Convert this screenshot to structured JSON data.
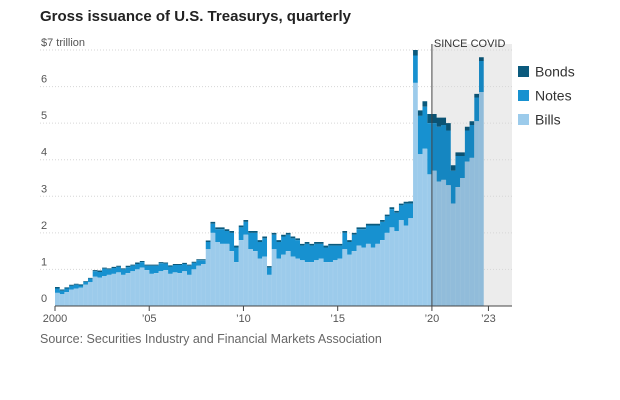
{
  "chart_data": {
    "type": "area",
    "title": "Gross issuance of U.S. Treasurys, quarterly",
    "source": "Source: Securities Industry and Financial Markets Association",
    "y_unit_label": "$7 trillion",
    "yticks": [
      "0",
      "1",
      "2",
      "3",
      "4",
      "5",
      "6"
    ],
    "ylim": [
      0,
      7
    ],
    "xlim": [
      2000,
      2024.25
    ],
    "xticks": [
      {
        "label": "2000",
        "x": 2000
      },
      {
        "label": "’05",
        "x": 2005
      },
      {
        "label": "’10",
        "x": 2010
      },
      {
        "label": "’15",
        "x": 2015
      },
      {
        "label": "’20",
        "x": 2020
      },
      {
        "label": "’23",
        "x": 2023
      }
    ],
    "highlight": {
      "label": "SINCE COVID",
      "start": 2020,
      "end": 2024.25
    },
    "stack_order": [
      "Bills",
      "Notes",
      "Bonds"
    ],
    "legend": [
      {
        "name": "Bonds",
        "color": "#0b5a7d"
      },
      {
        "name": "Notes",
        "color": "#1791d0"
      },
      {
        "name": "Bills",
        "color": "#9ccbeb"
      }
    ],
    "series": [
      {
        "name": "Bills",
        "color": "#9ccbeb",
        "values": [
          0.36,
          0.32,
          0.38,
          0.45,
          0.48,
          0.5,
          0.58,
          0.65,
          0.8,
          0.78,
          0.82,
          0.85,
          0.88,
          0.92,
          0.85,
          0.9,
          0.95,
          1.0,
          1.05,
          0.98,
          0.88,
          0.9,
          0.95,
          0.98,
          0.88,
          0.92,
          0.9,
          0.95,
          0.85,
          1.0,
          1.1,
          1.15,
          1.55,
          2.0,
          1.75,
          1.7,
          1.7,
          1.5,
          1.2,
          1.8,
          1.95,
          1.55,
          1.5,
          1.3,
          1.35,
          0.85,
          1.55,
          1.3,
          1.4,
          1.5,
          1.35,
          1.3,
          1.25,
          1.2,
          1.2,
          1.25,
          1.3,
          1.2,
          1.2,
          1.25,
          1.3,
          1.55,
          1.4,
          1.5,
          1.65,
          1.6,
          1.7,
          1.6,
          1.7,
          1.8,
          2.0,
          2.15,
          2.05,
          2.35,
          2.2,
          2.4,
          6.1,
          4.15,
          4.3,
          3.6,
          3.7,
          3.4,
          3.45,
          3.3,
          2.8,
          3.25,
          3.5,
          3.95,
          4.05,
          5.05,
          5.85
        ]
      },
      {
        "name": "Notes",
        "color": "#1791d0",
        "values": [
          0.12,
          0.1,
          0.1,
          0.1,
          0.1,
          0.06,
          0.08,
          0.1,
          0.15,
          0.15,
          0.2,
          0.15,
          0.16,
          0.15,
          0.15,
          0.16,
          0.15,
          0.15,
          0.15,
          0.12,
          0.22,
          0.2,
          0.22,
          0.18,
          0.2,
          0.2,
          0.22,
          0.2,
          0.25,
          0.18,
          0.15,
          0.1,
          0.2,
          0.25,
          0.35,
          0.4,
          0.35,
          0.5,
          0.4,
          0.35,
          0.35,
          0.45,
          0.5,
          0.45,
          0.5,
          0.2,
          0.4,
          0.45,
          0.5,
          0.45,
          0.5,
          0.5,
          0.4,
          0.5,
          0.45,
          0.45,
          0.4,
          0.4,
          0.45,
          0.4,
          0.35,
          0.45,
          0.35,
          0.45,
          0.45,
          0.5,
          0.5,
          0.6,
          0.5,
          0.5,
          0.45,
          0.5,
          0.5,
          0.4,
          0.6,
          0.4,
          0.75,
          1.05,
          1.15,
          1.4,
          1.3,
          1.5,
          1.5,
          1.5,
          0.9,
          0.85,
          0.6,
          0.85,
          0.9,
          0.65,
          0.85
        ]
      },
      {
        "name": "Bonds",
        "color": "#0b5a7d",
        "values": [
          0.04,
          0.03,
          0.03,
          0.03,
          0.03,
          0.03,
          0.02,
          0.02,
          0.03,
          0.04,
          0.03,
          0.03,
          0.03,
          0.03,
          0.03,
          0.04,
          0.03,
          0.04,
          0.03,
          0.03,
          0.03,
          0.03,
          0.03,
          0.03,
          0.03,
          0.03,
          0.03,
          0.03,
          0.03,
          0.03,
          0.03,
          0.03,
          0.04,
          0.05,
          0.05,
          0.05,
          0.05,
          0.05,
          0.05,
          0.05,
          0.05,
          0.05,
          0.05,
          0.05,
          0.05,
          0.04,
          0.05,
          0.05,
          0.05,
          0.05,
          0.05,
          0.05,
          0.05,
          0.05,
          0.05,
          0.05,
          0.05,
          0.05,
          0.05,
          0.05,
          0.05,
          0.05,
          0.05,
          0.05,
          0.05,
          0.05,
          0.05,
          0.05,
          0.05,
          0.05,
          0.05,
          0.05,
          0.05,
          0.05,
          0.05,
          0.06,
          0.15,
          0.15,
          0.15,
          0.25,
          0.25,
          0.25,
          0.2,
          0.2,
          0.15,
          0.1,
          0.1,
          0.1,
          0.1,
          0.1,
          0.1
        ]
      }
    ]
  }
}
